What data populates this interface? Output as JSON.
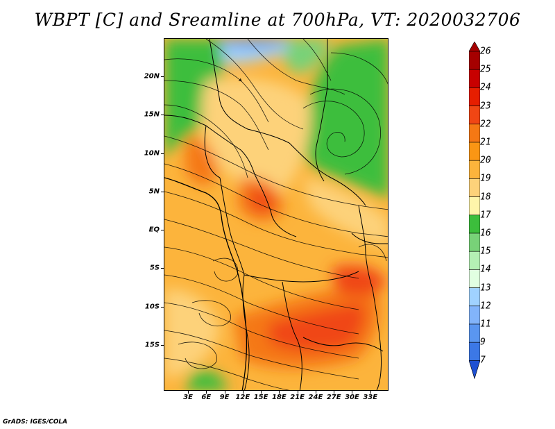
{
  "title": "WBPT [C] and Sreamline at 700hPa, VT: 2020032706",
  "credit": "GrADS: IGES/COLA",
  "map": {
    "region": "Central and Southern Africa",
    "lat_range": [
      -21,
      25
    ],
    "lon_range": [
      -1,
      36
    ],
    "lat_ticks": [
      {
        "value": 20,
        "label": "20N"
      },
      {
        "value": 15,
        "label": "15N"
      },
      {
        "value": 10,
        "label": "10N"
      },
      {
        "value": 5,
        "label": "5N"
      },
      {
        "value": 0,
        "label": "EQ"
      },
      {
        "value": -5,
        "label": "5S"
      },
      {
        "value": -10,
        "label": "10S"
      },
      {
        "value": -15,
        "label": "15S"
      }
    ],
    "lon_ticks": [
      {
        "value": 3,
        "label": "3E"
      },
      {
        "value": 6,
        "label": "6E"
      },
      {
        "value": 9,
        "label": "9E"
      },
      {
        "value": 12,
        "label": "12E"
      },
      {
        "value": 15,
        "label": "15E"
      },
      {
        "value": 18,
        "label": "18E"
      },
      {
        "value": 21,
        "label": "21E"
      },
      {
        "value": 24,
        "label": "24E"
      },
      {
        "value": 27,
        "label": "27E"
      },
      {
        "value": 30,
        "label": "30E"
      },
      {
        "value": 33,
        "label": "33E"
      }
    ]
  },
  "colorbar": {
    "levels": [
      {
        "label": "26",
        "color": "#a50000"
      },
      {
        "label": "25",
        "color": "#c80000"
      },
      {
        "label": "24",
        "color": "#e61e00"
      },
      {
        "label": "23",
        "color": "#f04614"
      },
      {
        "label": "22",
        "color": "#f57814"
      },
      {
        "label": "21",
        "color": "#fa9614"
      },
      {
        "label": "20",
        "color": "#fcb43c"
      },
      {
        "label": "19",
        "color": "#fdd27a"
      },
      {
        "label": "18",
        "color": "#fef5aa"
      },
      {
        "label": "17",
        "color": "#3cbe3c"
      },
      {
        "label": "16",
        "color": "#78d278"
      },
      {
        "label": "15",
        "color": "#b4f0b4"
      },
      {
        "label": "14",
        "color": "#e1ffe1"
      },
      {
        "label": "13",
        "color": "#a0d2ff"
      },
      {
        "label": "12",
        "color": "#82b4fa"
      },
      {
        "label": "11",
        "color": "#5a96f0"
      },
      {
        "label": "9",
        "color": "#3c78e6"
      },
      {
        "label": "7",
        "color": "#1e50d2"
      }
    ],
    "top_arrow_color": "#a50000",
    "bottom_arrow_color": "#1e50d2"
  }
}
